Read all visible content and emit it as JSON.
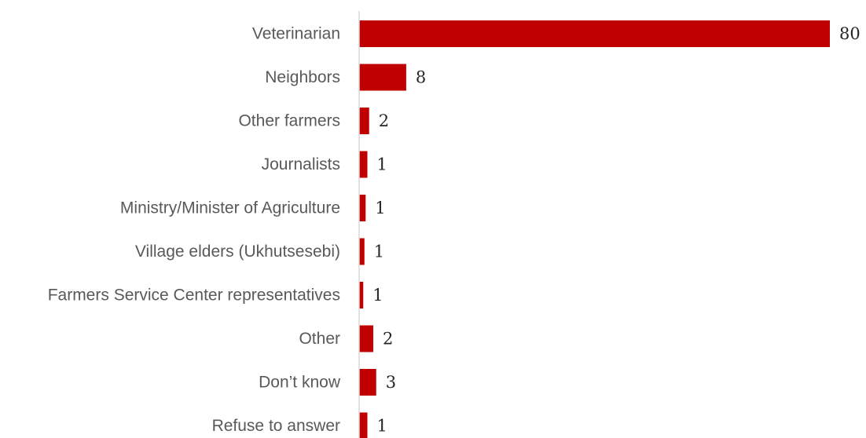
{
  "chart_data": {
    "type": "bar",
    "orientation": "horizontal",
    "categories": [
      "Veterinarian",
      "Neighbors",
      "Other farmers",
      "Journalists",
      "Ministry/Minister of Agriculture",
      "Village elders (Ukhutsesebi)",
      "Farmers Service Center representatives",
      "Other",
      "Don’t know",
      "Refuse to answer"
    ],
    "values": [
      80,
      8,
      2,
      1,
      1,
      1,
      1,
      2,
      3,
      1
    ],
    "bar_lengths": [
      80,
      8,
      1.7,
      1.4,
      1.1,
      0.9,
      0.7,
      2.4,
      2.9,
      1.4
    ],
    "data_labels": [
      "80",
      "8",
      "2",
      "1",
      "1",
      "1",
      "1",
      "2",
      "3",
      "1"
    ],
    "title": "",
    "xlabel": "",
    "ylabel": "",
    "xlim": [
      0,
      80
    ],
    "grid": false,
    "legend": "none",
    "bar_color": "#c00000",
    "axis_color": "#d9d9d9"
  }
}
